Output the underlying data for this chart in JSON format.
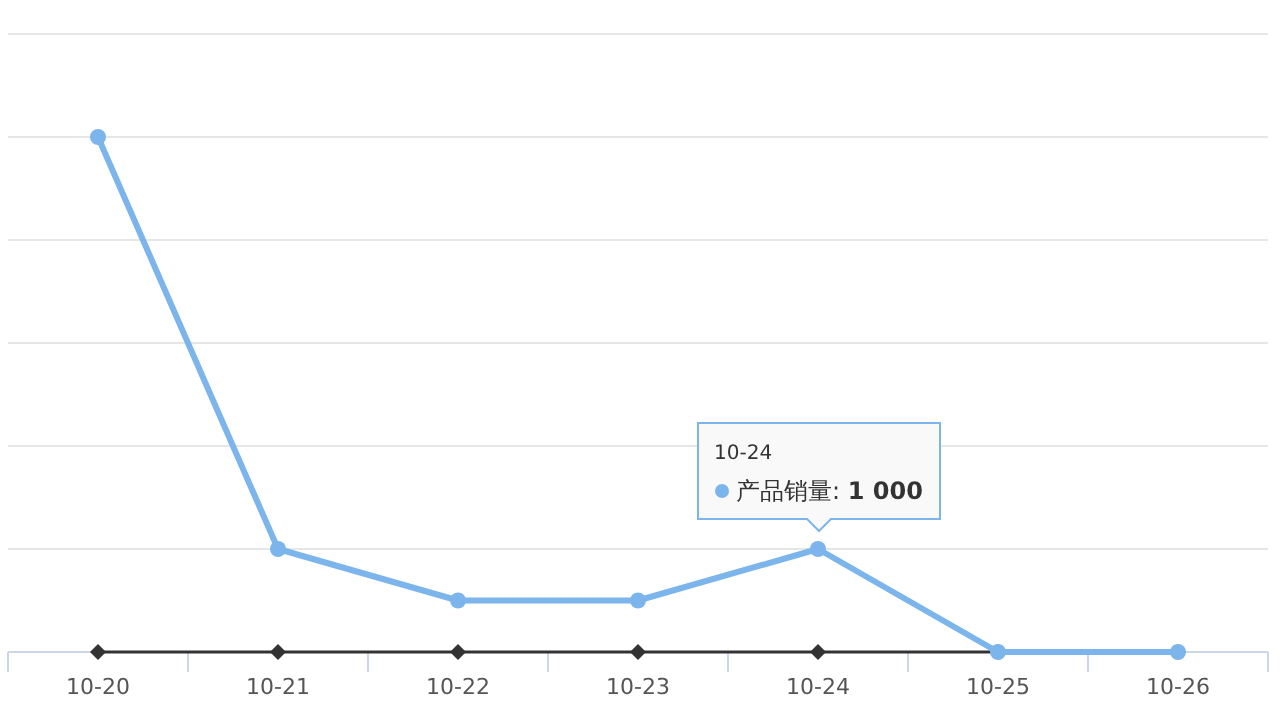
{
  "chart_data": {
    "type": "line",
    "categories": [
      "10-20",
      "10-21",
      "10-22",
      "10-23",
      "10-24",
      "10-25",
      "10-26"
    ],
    "ylim": [
      0,
      6000
    ],
    "yticks": [
      {
        "value": 0,
        "label": null
      },
      {
        "value": 1000,
        "label": null
      },
      {
        "value": 2000,
        "label": null
      },
      {
        "value": 3000,
        "label": null
      },
      {
        "value": 4000,
        "label": null
      },
      {
        "value": 5000,
        "label": null
      },
      {
        "value": 6000,
        "label": null
      }
    ],
    "grid": "y",
    "tick_labels": "x",
    "series": [
      {
        "name": "产品销量:",
        "color": "#7cb5ec",
        "marker": "circle",
        "values": [
          5000,
          1000,
          500,
          500,
          1000,
          0,
          0
        ],
        "value_labels": [
          null,
          null,
          null,
          null,
          "1 000",
          null,
          null
        ]
      },
      {
        "color": "#333333",
        "marker": "diamond",
        "values": [
          0,
          0,
          0,
          0,
          0,
          0,
          0
        ]
      }
    ],
    "annotations": [
      "10-24"
    ]
  }
}
